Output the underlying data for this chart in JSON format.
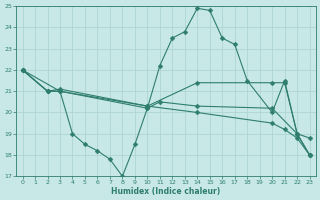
{
  "bg_color": "#c8e8e8",
  "grid_color": "#aed4d4",
  "line_color": "#2e7d6e",
  "marker_style": "D",
  "marker_size": 2.5,
  "xlabel": "Humidex (Indice chaleur)",
  "ylim": [
    17,
    25
  ],
  "xlim": [
    -0.5,
    23.5
  ],
  "yticks": [
    17,
    18,
    19,
    20,
    21,
    22,
    23,
    24,
    25
  ],
  "xticks": [
    0,
    1,
    2,
    3,
    4,
    5,
    6,
    7,
    8,
    9,
    10,
    11,
    12,
    13,
    14,
    15,
    16,
    17,
    18,
    19,
    20,
    21,
    22,
    23
  ],
  "series": [
    {
      "x": [
        0,
        2,
        3,
        4,
        5,
        6,
        7,
        8,
        9,
        10,
        11,
        14,
        20,
        22,
        23
      ],
      "y": [
        22,
        21.0,
        21.0,
        19.0,
        18.5,
        18.2,
        17.8,
        17.0,
        18.5,
        20.2,
        20.5,
        20.3,
        20.2,
        19.0,
        18.0
      ]
    },
    {
      "x": [
        0,
        2,
        3,
        10,
        14,
        20,
        21,
        22,
        23
      ],
      "y": [
        22,
        21.0,
        21.1,
        20.3,
        21.4,
        21.4,
        21.4,
        19.0,
        18.8
      ]
    },
    {
      "x": [
        0,
        3,
        10,
        14,
        20,
        21,
        22,
        23
      ],
      "y": [
        22,
        21.0,
        20.3,
        20.0,
        19.5,
        19.2,
        18.8,
        18.0
      ]
    },
    {
      "x": [
        0,
        2,
        3,
        10,
        11,
        12,
        13,
        14,
        15,
        16,
        17,
        18,
        20,
        21,
        22,
        23
      ],
      "y": [
        22,
        21.0,
        21.0,
        20.2,
        22.2,
        23.5,
        23.8,
        24.9,
        24.8,
        23.5,
        23.2,
        21.5,
        20.0,
        21.5,
        19.0,
        18.0
      ]
    }
  ]
}
